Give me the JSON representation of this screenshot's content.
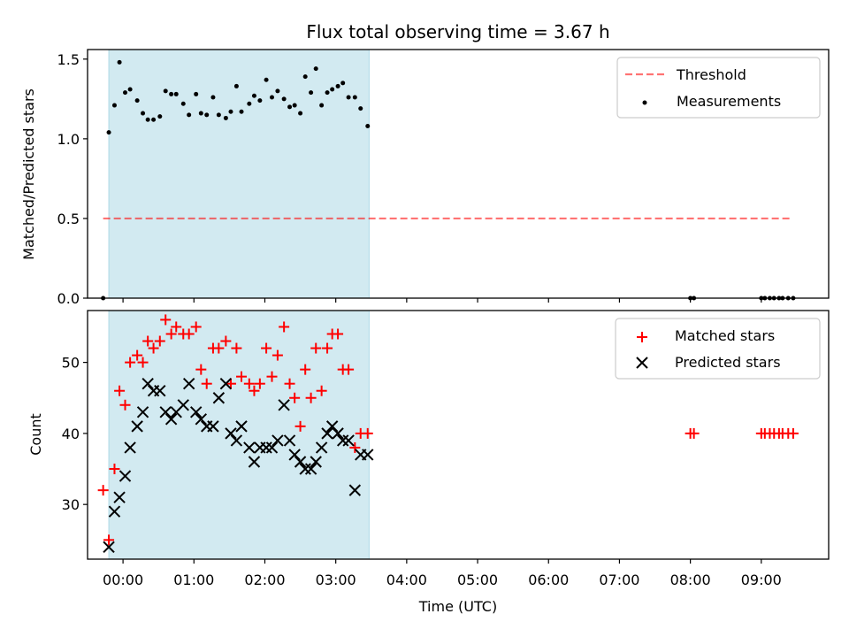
{
  "colors": {
    "shade": "#add8e6",
    "threshold": "#ff0000",
    "measurement": "#000000",
    "matched": "#ff0000",
    "predicted": "#000000"
  },
  "chart_data": [
    {
      "type": "scatter",
      "title": "Flux total observing time = 3.67 h",
      "xlabel": "",
      "ylabel": "Matched/Predicted stars",
      "xlim": [
        -0.5,
        9.95
      ],
      "ylim": [
        0,
        1.56
      ],
      "yticks": [
        0.0,
        0.5,
        1.0,
        1.5
      ],
      "ytick_labels": [
        "0.0",
        "0.5",
        "1.0",
        "1.5"
      ],
      "grid": false,
      "legend_position": "upper right",
      "shaded_x_range": [
        -0.2,
        3.47
      ],
      "threshold": {
        "name": "Threshold",
        "value": 0.5,
        "x_range": [
          -0.28,
          9.4
        ]
      },
      "series": [
        {
          "name": "Measurements",
          "x": [
            -0.28,
            -0.2,
            -0.12,
            -0.05,
            0.03,
            0.1,
            0.2,
            0.28,
            0.35,
            0.43,
            0.52,
            0.6,
            0.68,
            0.75,
            0.85,
            0.93,
            1.03,
            1.1,
            1.18,
            1.27,
            1.35,
            1.45,
            1.52,
            1.6,
            1.67,
            1.78,
            1.85,
            1.93,
            2.02,
            2.1,
            2.18,
            2.27,
            2.35,
            2.42,
            2.5,
            2.57,
            2.65,
            2.72,
            2.8,
            2.88,
            2.95,
            3.03,
            3.1,
            3.18,
            3.27,
            3.35,
            3.45,
            8.0,
            8.05,
            9.0,
            9.05,
            9.12,
            9.18,
            9.25,
            9.3,
            9.38,
            9.45
          ],
          "y": [
            0.0,
            1.04,
            1.21,
            1.48,
            1.29,
            1.31,
            1.24,
            1.16,
            1.12,
            1.12,
            1.14,
            1.3,
            1.28,
            1.28,
            1.22,
            1.15,
            1.28,
            1.16,
            1.15,
            1.26,
            1.15,
            1.13,
            1.17,
            1.33,
            1.17,
            1.22,
            1.27,
            1.24,
            1.37,
            1.26,
            1.3,
            1.25,
            1.2,
            1.21,
            1.16,
            1.39,
            1.29,
            1.44,
            1.21,
            1.29,
            1.31,
            1.33,
            1.35,
            1.26,
            1.26,
            1.19,
            1.08,
            0.0,
            0.0,
            0.0,
            0.0,
            0.0,
            0.0,
            0.0,
            0.0,
            0.0,
            0.0
          ]
        }
      ]
    },
    {
      "type": "scatter",
      "title": "",
      "xlabel": "Time (UTC)",
      "ylabel": "Count",
      "xlim": [
        -0.5,
        9.95
      ],
      "ylim": [
        22.3,
        57.3
      ],
      "xticks": [
        0,
        1,
        2,
        3,
        4,
        5,
        6,
        7,
        8,
        9
      ],
      "xtick_labels": [
        "00:00",
        "01:00",
        "02:00",
        "03:00",
        "04:00",
        "05:00",
        "06:00",
        "07:00",
        "08:00",
        "09:00"
      ],
      "yticks": [
        30,
        40,
        50
      ],
      "ytick_labels": [
        "30",
        "40",
        "50"
      ],
      "grid": false,
      "legend_position": "upper right",
      "shaded_x_range": [
        -0.2,
        3.47
      ],
      "series": [
        {
          "name": "Matched stars",
          "x": [
            -0.28,
            -0.2,
            -0.12,
            -0.05,
            0.03,
            0.1,
            0.2,
            0.28,
            0.35,
            0.43,
            0.52,
            0.6,
            0.68,
            0.75,
            0.85,
            0.93,
            1.03,
            1.1,
            1.18,
            1.27,
            1.35,
            1.45,
            1.52,
            1.6,
            1.67,
            1.78,
            1.85,
            1.93,
            2.02,
            2.1,
            2.18,
            2.27,
            2.35,
            2.42,
            2.5,
            2.57,
            2.65,
            2.72,
            2.8,
            2.88,
            2.95,
            3.03,
            3.1,
            3.18,
            3.27,
            3.35,
            3.45,
            8.0,
            8.05,
            9.0,
            9.05,
            9.12,
            9.18,
            9.25,
            9.3,
            9.38,
            9.45
          ],
          "y": [
            32,
            25,
            35,
            46,
            44,
            50,
            51,
            50,
            53,
            52,
            53,
            56,
            54,
            55,
            54,
            54,
            55,
            49,
            47,
            52,
            52,
            53,
            47,
            52,
            48,
            47,
            46,
            47,
            52,
            48,
            51,
            55,
            47,
            45,
            41,
            49,
            45,
            52,
            46,
            52,
            54,
            54,
            49,
            49,
            38,
            40,
            40,
            40,
            40,
            40,
            40,
            40,
            40,
            40,
            40,
            40,
            40
          ]
        },
        {
          "name": "Predicted stars",
          "x": [
            -0.2,
            -0.12,
            -0.05,
            0.03,
            0.1,
            0.2,
            0.28,
            0.35,
            0.43,
            0.52,
            0.6,
            0.68,
            0.75,
            0.85,
            0.93,
            1.03,
            1.1,
            1.18,
            1.27,
            1.35,
            1.45,
            1.52,
            1.6,
            1.67,
            1.78,
            1.85,
            1.93,
            2.02,
            2.1,
            2.18,
            2.27,
            2.35,
            2.42,
            2.5,
            2.57,
            2.65,
            2.72,
            2.8,
            2.88,
            2.95,
            3.03,
            3.1,
            3.18,
            3.27,
            3.35,
            3.45
          ],
          "y": [
            24,
            29,
            31,
            34,
            38,
            41,
            43,
            47,
            46,
            46,
            43,
            42,
            43,
            44,
            47,
            43,
            42,
            41,
            41,
            45,
            47,
            40,
            39,
            41,
            38,
            36,
            38,
            38,
            38,
            39,
            44,
            39,
            37,
            36,
            35,
            35,
            36,
            38,
            40,
            41,
            40,
            39,
            39,
            32,
            37,
            37
          ]
        }
      ]
    }
  ]
}
